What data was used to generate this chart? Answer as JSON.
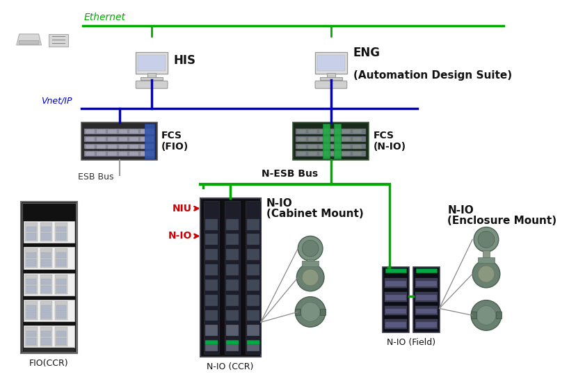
{
  "bg_color": "#ffffff",
  "ethernet_color": "#00aa00",
  "vnet_color": "#0000cc",
  "nesb_color": "#00aa00",
  "esb_color": "#999999",
  "red_color": "#cc0000",
  "gray_line": "#888888",
  "ethernet_label": "Ethernet",
  "vnet_label": "Vnet/IP",
  "nesb_label": "N-ESB Bus",
  "esb_label": "ESB Bus",
  "his_label": "HIS",
  "eng_label1": "ENG",
  "eng_label2": "(Automation Design Suite)",
  "fcs_fio_label1": "FCS",
  "fcs_fio_label2": "(FIO)",
  "fcs_nio_label1": "FCS",
  "fcs_nio_label2": "(N-IO)",
  "niu_label": "NIU",
  "nio_label": "N-IO",
  "nio_cabinet_label1": "N-IO",
  "nio_cabinet_label2": "(Cabinet Mount)",
  "nio_enclosure_label1": "N-IO",
  "nio_enclosure_label2": "(Enclosure Mount)",
  "fio_ccr_label": "FIO(CCR)",
  "nio_ccr_label": "N-IO (CCR)",
  "nio_field_label": "N-IO (Field)"
}
